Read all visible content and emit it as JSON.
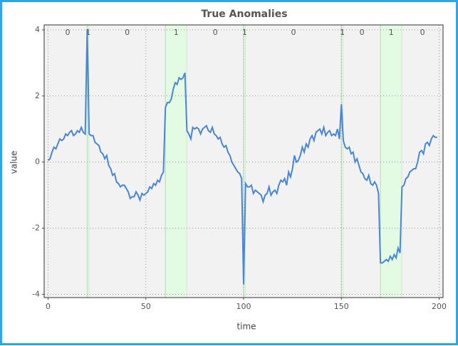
{
  "chart_data": {
    "type": "line",
    "title": "True Anomalies",
    "x_label": "time",
    "y_label": "value",
    "xlim": [
      -2,
      202
    ],
    "ylim": [
      -4.1,
      4.15
    ],
    "xticks": [
      0,
      50,
      100,
      150,
      200
    ],
    "yticks": [
      -4,
      -2,
      0,
      2,
      4
    ],
    "grid": true,
    "regions": [
      {
        "start": 0,
        "end": 20,
        "label": 0,
        "color": "#f2f2f2"
      },
      {
        "start": 20,
        "end": 21,
        "label": 1,
        "color": "#e3fbe3"
      },
      {
        "start": 21,
        "end": 60,
        "label": 0,
        "color": "#f2f2f2"
      },
      {
        "start": 60,
        "end": 71,
        "label": 1,
        "color": "#e3fbe3"
      },
      {
        "start": 71,
        "end": 100,
        "label": 0,
        "color": "#f2f2f2"
      },
      {
        "start": 100,
        "end": 101,
        "label": 1,
        "color": "#e3fbe3"
      },
      {
        "start": 101,
        "end": 150,
        "label": 0,
        "color": "#f2f2f2"
      },
      {
        "start": 150,
        "end": 151,
        "label": 1,
        "color": "#e3fbe3"
      },
      {
        "start": 151,
        "end": 170,
        "label": 0,
        "color": "#f2f2f2"
      },
      {
        "start": 170,
        "end": 181,
        "label": 1,
        "color": "#e3fbe3"
      },
      {
        "start": 181,
        "end": 202,
        "label": 0,
        "color": "#f2f2f2"
      }
    ],
    "x": [
      0,
      1,
      2,
      3,
      4,
      5,
      6,
      7,
      8,
      9,
      10,
      11,
      12,
      13,
      14,
      15,
      16,
      17,
      18,
      19,
      20,
      21,
      22,
      23,
      24,
      25,
      26,
      27,
      28,
      29,
      30,
      31,
      32,
      33,
      34,
      35,
      36,
      37,
      38,
      39,
      40,
      41,
      42,
      43,
      44,
      45,
      46,
      47,
      48,
      49,
      50,
      51,
      52,
      53,
      54,
      55,
      56,
      57,
      58,
      59,
      60,
      61,
      62,
      63,
      64,
      65,
      66,
      67,
      68,
      69,
      70,
      71,
      72,
      73,
      74,
      75,
      76,
      77,
      78,
      79,
      80,
      81,
      82,
      83,
      84,
      85,
      86,
      87,
      88,
      89,
      90,
      91,
      92,
      93,
      94,
      95,
      96,
      97,
      98,
      99,
      100,
      101,
      102,
      103,
      104,
      105,
      106,
      107,
      108,
      109,
      110,
      111,
      112,
      113,
      114,
      115,
      116,
      117,
      118,
      119,
      120,
      121,
      122,
      123,
      124,
      125,
      126,
      127,
      128,
      129,
      130,
      131,
      132,
      133,
      134,
      135,
      136,
      137,
      138,
      139,
      140,
      141,
      142,
      143,
      144,
      145,
      146,
      147,
      148,
      149,
      150,
      151,
      152,
      153,
      154,
      155,
      156,
      157,
      158,
      159,
      160,
      161,
      162,
      163,
      164,
      165,
      166,
      167,
      168,
      169,
      170,
      171,
      172,
      173,
      174,
      175,
      176,
      177,
      178,
      179,
      180,
      181,
      182,
      183,
      184,
      185,
      186,
      187,
      188,
      189,
      190,
      191,
      192,
      193,
      194,
      195,
      196,
      197,
      198,
      199
    ],
    "series": [
      {
        "color": "#4a86d8",
        "values": [
          0.05,
          0.1,
          0.3,
          0.45,
          0.4,
          0.55,
          0.7,
          0.65,
          0.7,
          0.85,
          0.8,
          0.9,
          0.95,
          0.8,
          0.85,
          0.95,
          0.9,
          1.05,
          0.9,
          0.85,
          4.0,
          0.85,
          0.8,
          0.8,
          0.6,
          0.55,
          0.5,
          0.3,
          0.25,
          0.1,
          0.2,
          -0.1,
          -0.2,
          -0.4,
          -0.35,
          -0.6,
          -0.65,
          -0.75,
          -0.7,
          -0.7,
          -0.8,
          -0.9,
          -1.1,
          -1.05,
          -1.05,
          -0.9,
          -1.0,
          -1.15,
          -0.95,
          -1.0,
          -0.95,
          -0.9,
          -0.75,
          -0.8,
          -0.65,
          -0.7,
          -0.55,
          -0.6,
          -0.4,
          -0.3,
          1.65,
          1.8,
          1.8,
          1.9,
          2.2,
          2.4,
          2.35,
          2.55,
          2.5,
          2.55,
          2.7,
          0.95,
          0.85,
          0.7,
          1.05,
          1.0,
          1.05,
          1.0,
          0.85,
          1.0,
          1.05,
          1.1,
          0.95,
          0.9,
          1.05,
          0.85,
          0.8,
          0.7,
          0.75,
          0.55,
          0.45,
          0.5,
          0.3,
          0.2,
          0.0,
          -0.1,
          -0.2,
          -0.3,
          -0.35,
          -0.5,
          -3.7,
          -0.65,
          -0.75,
          -0.75,
          -0.7,
          -0.95,
          -0.85,
          -0.9,
          -0.95,
          -1.0,
          -1.2,
          -1.0,
          -0.95,
          -0.75,
          -1.0,
          -0.9,
          -0.85,
          -0.95,
          -0.7,
          -0.55,
          -0.6,
          -0.5,
          -0.7,
          -0.3,
          -0.45,
          -0.2,
          0.2,
          0.0,
          0.05,
          0.2,
          0.45,
          0.3,
          0.55,
          0.45,
          0.7,
          0.8,
          0.65,
          0.9,
          0.95,
          1.0,
          0.85,
          1.05,
          0.8,
          0.9,
          0.95,
          0.8,
          0.85,
          0.8,
          1.0,
          0.7,
          1.75,
          0.65,
          0.45,
          0.4,
          0.45,
          0.25,
          0.3,
          0.0,
          0.1,
          -0.1,
          -0.3,
          -0.35,
          -0.5,
          -0.55,
          -0.4,
          -0.65,
          -0.7,
          -0.6,
          -0.7,
          -0.95,
          -3.05,
          -3.05,
          -3.0,
          -2.95,
          -3.0,
          -2.85,
          -2.95,
          -2.8,
          -2.9,
          -2.6,
          -2.75,
          -0.75,
          -0.7,
          -0.5,
          -0.45,
          -0.3,
          -0.25,
          -0.2,
          -0.2,
          0.0,
          0.3,
          0.35,
          0.25,
          0.55,
          0.6,
          0.5,
          0.7,
          0.8,
          0.75,
          0.75
        ]
      }
    ]
  }
}
